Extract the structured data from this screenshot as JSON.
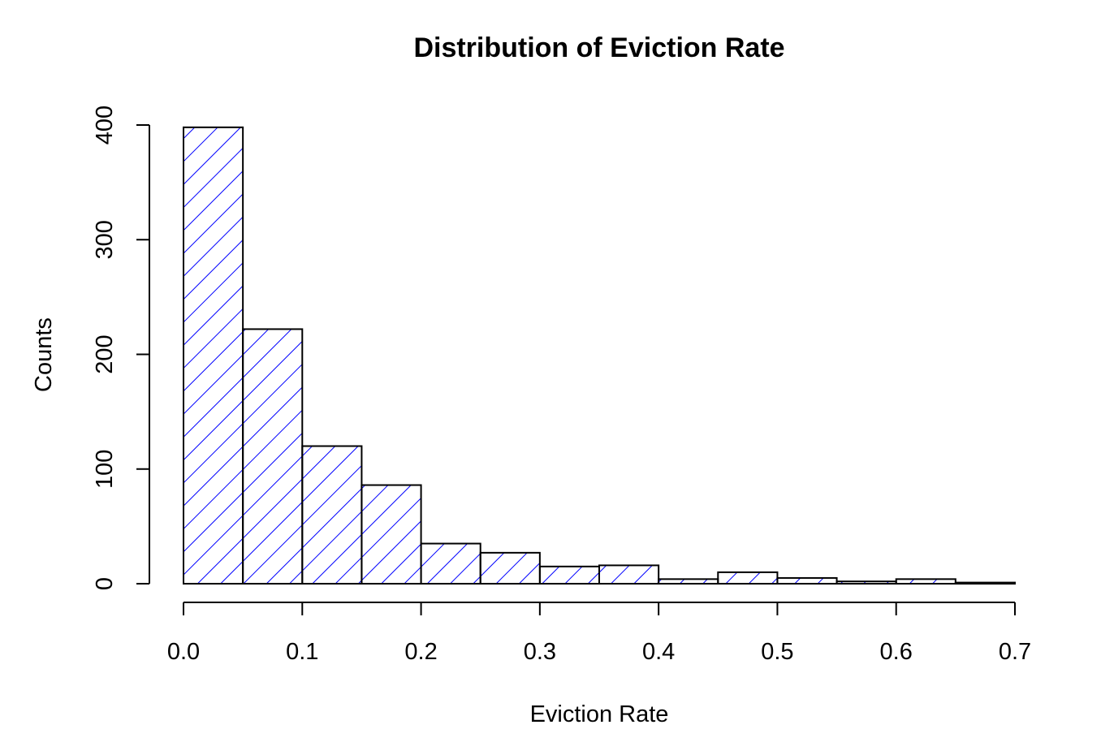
{
  "chart_data": {
    "type": "bar",
    "subtype": "histogram",
    "title": "Distribution of Eviction Rate",
    "xlabel": "Eviction Rate",
    "ylabel": "Counts",
    "bin_edges": [
      0.0,
      0.05,
      0.1,
      0.15,
      0.2,
      0.25,
      0.3,
      0.35,
      0.4,
      0.45,
      0.5,
      0.55,
      0.6,
      0.65,
      0.7
    ],
    "values": [
      398,
      222,
      120,
      86,
      35,
      27,
      15,
      16,
      4,
      10,
      5,
      2,
      4,
      1
    ],
    "xlim": [
      0.0,
      0.7
    ],
    "ylim": [
      0,
      400
    ],
    "x_ticks": [
      "0.0",
      "0.1",
      "0.2",
      "0.3",
      "0.4",
      "0.5",
      "0.6",
      "0.7"
    ],
    "y_ticks": [
      "0",
      "100",
      "200",
      "300",
      "400"
    ],
    "fill_pattern": "diagonal-hatch",
    "hatch_color": "#0000ff",
    "outline_color": "#000000",
    "grid": false
  }
}
